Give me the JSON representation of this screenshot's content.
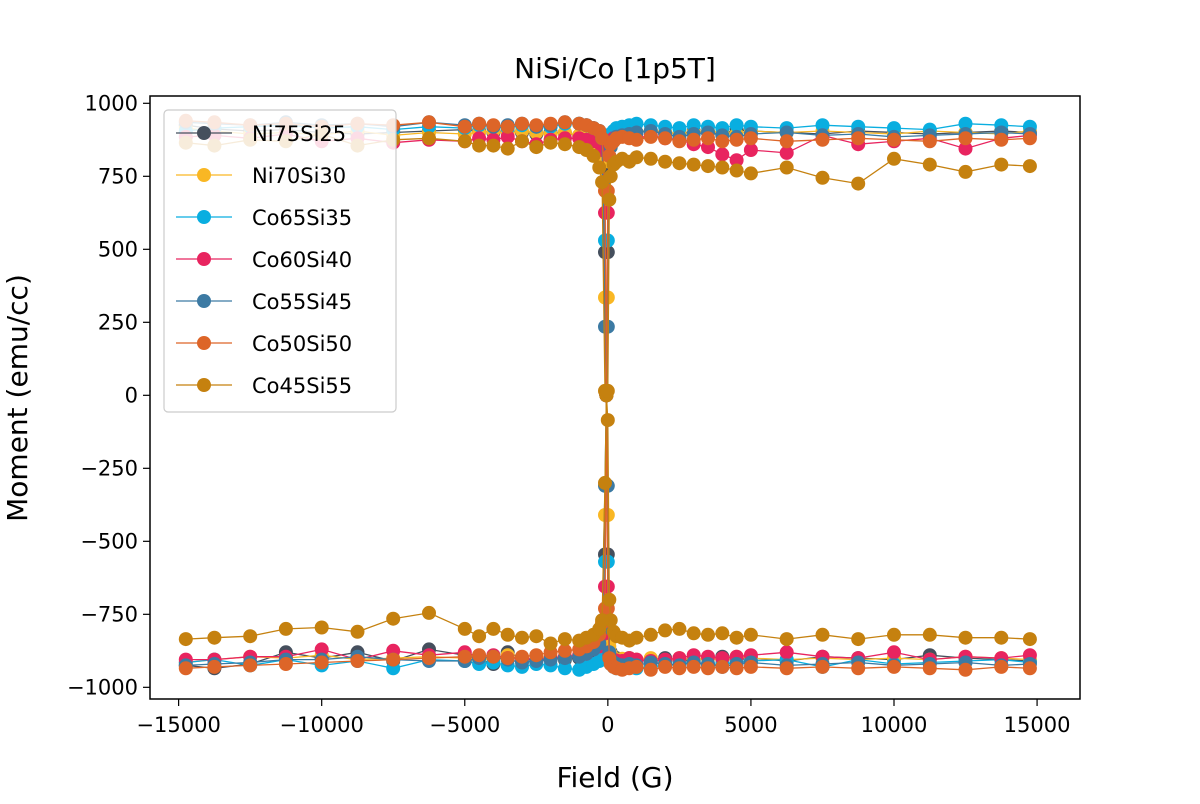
{
  "chart_data": {
    "type": "line",
    "title": "NiSi/Co [1p5T]",
    "xlabel": "Field (G)",
    "ylabel": "Moment (emu/cc)",
    "xlim": [
      -16000,
      16500
    ],
    "ylim": [
      -1040,
      1025
    ],
    "xticks": [
      -15000,
      -10000,
      -5000,
      0,
      5000,
      10000,
      15000
    ],
    "xtick_labels": [
      "−15000",
      "−10000",
      "−5000",
      "0",
      "5000",
      "10000",
      "15000"
    ],
    "yticks": [
      -1000,
      -750,
      -500,
      -250,
      0,
      250,
      500,
      750,
      1000
    ],
    "ytick_labels": [
      "−1000",
      "−750",
      "−500",
      "−250",
      "0",
      "250",
      "500",
      "750",
      "1000"
    ],
    "grid": false,
    "legend_position": "top-left",
    "x": [
      -14750,
      -13750,
      -12500,
      -11250,
      -10000,
      -8750,
      -7500,
      -6250,
      -5000,
      -4500,
      -4000,
      -3500,
      -3000,
      -2500,
      -2000,
      -1500,
      -1000,
      -750,
      -500,
      -300,
      -200,
      -100,
      -50,
      0,
      50,
      100,
      200,
      300,
      500,
      750,
      1000,
      1500,
      2000,
      2500,
      3000,
      3500,
      4000,
      4500,
      5000,
      6250,
      7500,
      8750,
      10000,
      11250,
      12500,
      13750,
      14750
    ],
    "series": [
      {
        "name": "Ni75Si25",
        "color": "#454f5d",
        "down": [
          925,
          912,
          905,
          910,
          900,
          895,
          900,
          905,
          910,
          905,
          900,
          905,
          900,
          895,
          900,
          898,
          890,
          880,
          870,
          840,
          780,
          490,
          0,
          -545,
          -840,
          -880,
          -895,
          -900,
          -905,
          -900,
          -910,
          -905,
          -900,
          -910,
          -905,
          -900,
          -895,
          -905,
          -900,
          -910,
          -895,
          -900,
          -905,
          -890,
          -900,
          -905,
          -910
        ],
        "up": [
          -925,
          -935,
          -920,
          -880,
          -900,
          -880,
          -910,
          -870,
          -890,
          -905,
          -920,
          -880,
          -900,
          -910,
          -900,
          -905,
          -900,
          -890,
          -880,
          -860,
          -800,
          -545,
          0,
          490,
          800,
          860,
          880,
          890,
          895,
          900,
          900,
          905,
          900,
          895,
          905,
          900,
          895,
          910,
          905,
          900,
          895,
          905,
          900,
          895,
          900,
          905,
          900
        ]
      },
      {
        "name": "Ni70Si30",
        "color": "#f9b724",
        "down": [
          915,
          905,
          895,
          900,
          892,
          905,
          890,
          900,
          895,
          900,
          905,
          898,
          905,
          900,
          895,
          900,
          890,
          880,
          870,
          850,
          800,
          335,
          0,
          -410,
          -860,
          -885,
          -900,
          -905,
          -902,
          -900,
          -905,
          -900,
          -910,
          -900,
          -905,
          -900,
          -905,
          -895,
          -900,
          -905,
          -900,
          -905,
          -900,
          -905,
          -895,
          -900,
          -905
        ],
        "up": [
          -915,
          -905,
          -895,
          -900,
          -890,
          -905,
          -900,
          -895,
          -900,
          -905,
          -900,
          -890,
          -905,
          -900,
          -895,
          -900,
          -890,
          -880,
          -865,
          -840,
          -780,
          -410,
          0,
          335,
          800,
          850,
          870,
          880,
          890,
          895,
          900,
          905,
          900,
          895,
          900,
          905,
          900,
          895,
          905,
          900,
          905,
          900,
          895,
          905,
          900,
          895,
          905
        ]
      },
      {
        "name": "Co65Si35",
        "color": "#09aee0",
        "down": [
          905,
          915,
          920,
          925,
          915,
          920,
          910,
          920,
          915,
          925,
          920,
          915,
          925,
          920,
          920,
          930,
          930,
          925,
          915,
          905,
          880,
          530,
          0,
          -570,
          -900,
          -920,
          -930,
          -935,
          -935,
          -930,
          -935,
          -930,
          -925,
          -920,
          -915,
          -925,
          -920,
          -915,
          -910,
          -905,
          -930,
          -905,
          -920,
          -915,
          -910,
          -905,
          -915
        ],
        "up": [
          -915,
          -905,
          -925,
          -905,
          -925,
          -910,
          -935,
          -905,
          -910,
          -920,
          -915,
          -925,
          -930,
          -920,
          -925,
          -935,
          -940,
          -930,
          -920,
          -910,
          -890,
          -570,
          0,
          530,
          870,
          895,
          905,
          915,
          920,
          925,
          930,
          925,
          920,
          915,
          925,
          920,
          915,
          925,
          920,
          915,
          925,
          920,
          915,
          910,
          930,
          925,
          920
        ]
      },
      {
        "name": "Co60Si40",
        "color": "#e8245f",
        "down": [
          885,
          890,
          880,
          895,
          870,
          880,
          865,
          875,
          870,
          880,
          875,
          885,
          870,
          860,
          875,
          880,
          880,
          875,
          870,
          865,
          840,
          625,
          0,
          -655,
          -890,
          -900,
          -905,
          -908,
          -910,
          -900,
          -905,
          -910,
          -905,
          -900,
          -890,
          -895,
          -900,
          -895,
          -890,
          -880,
          -895,
          -900,
          -880,
          -905,
          -895,
          -900,
          -890
        ],
        "up": [
          -905,
          -905,
          -895,
          -895,
          -870,
          -905,
          -875,
          -890,
          -880,
          -895,
          -890,
          -900,
          -900,
          -905,
          -900,
          -895,
          -890,
          -885,
          -870,
          -860,
          -820,
          -655,
          0,
          625,
          850,
          870,
          880,
          885,
          890,
          885,
          880,
          890,
          880,
          875,
          860,
          850,
          825,
          805,
          840,
          830,
          890,
          860,
          870,
          880,
          845,
          880,
          890
        ]
      },
      {
        "name": "Co55Si45",
        "color": "#3c7aa3",
        "down": [
          935,
          930,
          925,
          935,
          925,
          930,
          920,
          935,
          925,
          930,
          920,
          925,
          930,
          920,
          925,
          935,
          930,
          925,
          915,
          905,
          880,
          235,
          0,
          -310,
          -880,
          -905,
          -915,
          -920,
          -925,
          -920,
          -925,
          -915,
          -920,
          -925,
          -915,
          -920,
          -930,
          -920,
          -915,
          -925,
          -920,
          -915,
          -925,
          -920,
          -915,
          -925,
          -920
        ],
        "up": [
          -925,
          -920,
          -915,
          -905,
          -905,
          -895,
          -905,
          -910,
          -910,
          -900,
          -895,
          -905,
          -915,
          -910,
          -905,
          -900,
          -895,
          -885,
          -870,
          -850,
          -800,
          -310,
          0,
          235,
          820,
          850,
          870,
          885,
          890,
          895,
          900,
          905,
          895,
          885,
          895,
          900,
          890,
          885,
          895,
          900,
          890,
          895,
          885,
          890,
          895,
          900,
          895
        ]
      },
      {
        "name": "Co50Si50",
        "color": "#dd6528",
        "down": [
          940,
          935,
          925,
          930,
          920,
          930,
          925,
          935,
          920,
          930,
          925,
          920,
          930,
          925,
          930,
          935,
          930,
          925,
          915,
          905,
          880,
          700,
          0,
          -730,
          -900,
          -920,
          -930,
          -935,
          -940,
          -935,
          -930,
          -940,
          -930,
          -935,
          -930,
          -935,
          -930,
          -935,
          -930,
          -935,
          -930,
          -935,
          -930,
          -935,
          -940,
          -930,
          -935
        ],
        "up": [
          -935,
          -930,
          -925,
          -920,
          -915,
          -910,
          -905,
          -900,
          -895,
          -890,
          -895,
          -900,
          -895,
          -890,
          -880,
          -875,
          -870,
          -860,
          -845,
          -820,
          -780,
          -730,
          0,
          700,
          820,
          860,
          870,
          880,
          885,
          880,
          875,
          885,
          880,
          870,
          875,
          880,
          870,
          875,
          880,
          870,
          875,
          880,
          875,
          870,
          880,
          875,
          880
        ]
      },
      {
        "name": "Co45Si55",
        "color": "#c5810f",
        "down": [
          865,
          855,
          875,
          870,
          895,
          855,
          875,
          880,
          870,
          855,
          855,
          845,
          870,
          850,
          865,
          860,
          850,
          840,
          820,
          780,
          730,
          15,
          0,
          -85,
          -700,
          -770,
          -810,
          -825,
          -830,
          -840,
          -830,
          -820,
          -805,
          -800,
          -815,
          -820,
          -815,
          -830,
          -820,
          -835,
          -820,
          -835,
          -820,
          -820,
          -830,
          -830,
          -835
        ],
        "up": [
          -835,
          -830,
          -825,
          -800,
          -795,
          -810,
          -765,
          -745,
          -800,
          -825,
          -800,
          -820,
          -830,
          -825,
          -850,
          -835,
          -840,
          -830,
          -820,
          -800,
          -770,
          -300,
          0,
          15,
          670,
          750,
          790,
          800,
          810,
          800,
          815,
          810,
          800,
          795,
          790,
          785,
          780,
          770,
          760,
          780,
          745,
          725,
          810,
          790,
          765,
          790,
          785
        ]
      }
    ]
  }
}
